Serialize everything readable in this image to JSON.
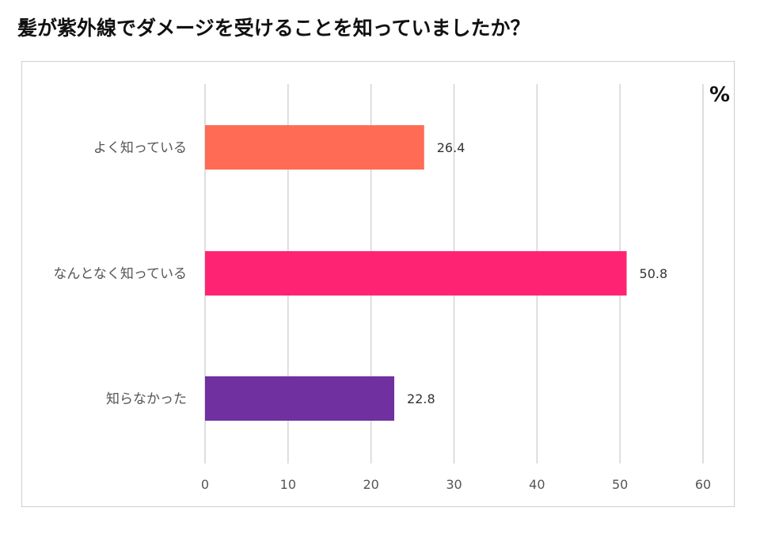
{
  "chart_data": {
    "type": "bar",
    "orientation": "horizontal",
    "title": "髪が紫外線でダメージを受けることを知っていましたか？",
    "unit": "%",
    "categories": [
      "よく知っている",
      "なんとなく知っている",
      "知らなかった"
    ],
    "values": [
      26.4,
      50.8,
      22.8
    ],
    "value_labels": [
      "26.4",
      "50.8",
      "22.8"
    ],
    "colors": [
      "#ff6b55",
      "#ff2473",
      "#7030a0"
    ],
    "xlim": [
      0,
      60
    ],
    "xticks": [
      0,
      10,
      20,
      30,
      40,
      50,
      60
    ],
    "xtick_labels": [
      "0",
      "10",
      "20",
      "30",
      "40",
      "50",
      "60"
    ],
    "grid": true,
    "legend": "none"
  }
}
